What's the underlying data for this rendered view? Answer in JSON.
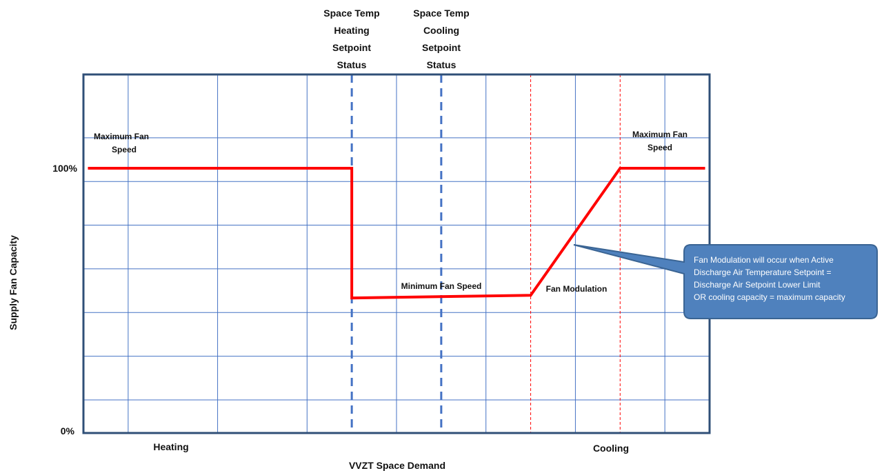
{
  "chart_data": {
    "type": "line",
    "xlabel": "VVZT Space Demand",
    "ylabel": "Supply Fan Capacity",
    "x_range": [
      0,
      14
    ],
    "ylim": [
      0,
      100
    ],
    "y_ticks": [
      {
        "value": 0,
        "label": "0%"
      },
      {
        "value": 100,
        "label": "100%"
      }
    ],
    "grid": true,
    "x_regions": [
      {
        "label": "Heating",
        "x": 2
      },
      {
        "label": "Cooling",
        "x": 12
      }
    ],
    "series": [
      {
        "color": "#ff0000",
        "points": [
          {
            "x": 0.1,
            "y": 100
          },
          {
            "x": 6.0,
            "y": 100
          },
          {
            "x": 6.0,
            "y": 51
          },
          {
            "x": 10.0,
            "y": 52
          },
          {
            "x": 12.0,
            "y": 100
          },
          {
            "x": 13.9,
            "y": 100
          }
        ]
      }
    ],
    "setpoint_lines": [
      {
        "x": 6.0,
        "lines": [
          "Space Temp",
          "Heating",
          "Setpoint",
          "Status"
        ],
        "color": "#4472c4",
        "style": "dashed"
      },
      {
        "x": 8.0,
        "lines": [
          "Space Temp",
          "Cooling",
          "Setpoint",
          "Status"
        ],
        "color": "#4472c4",
        "style": "dashed"
      }
    ],
    "marker_lines": [
      {
        "x": 10.0,
        "color": "#ff0000",
        "style": "dotted"
      },
      {
        "x": 12.0,
        "color": "#ff0000",
        "style": "dotted"
      }
    ],
    "annotations": [
      {
        "id": "max-left",
        "lines": [
          "Maximum Fan",
          "Speed"
        ]
      },
      {
        "id": "max-right",
        "lines": [
          "Maximum Fan",
          "Speed"
        ]
      },
      {
        "id": "min",
        "lines": [
          "Minimum Fan Speed"
        ]
      },
      {
        "id": "mod",
        "lines": [
          "Fan Modulation"
        ]
      }
    ],
    "callout": {
      "lines": [
        "Fan Modulation will occur when Active",
        "Discharge Air Temperature Setpoint =",
        "Discharge Air Setpoint Lower Limit",
        "OR cooling capacity = maximum capacity"
      ],
      "fill": "#4f81bd"
    },
    "colors": {
      "frame": "#2f4f77",
      "grid": "#4472c4",
      "line": "#ff0000"
    }
  }
}
